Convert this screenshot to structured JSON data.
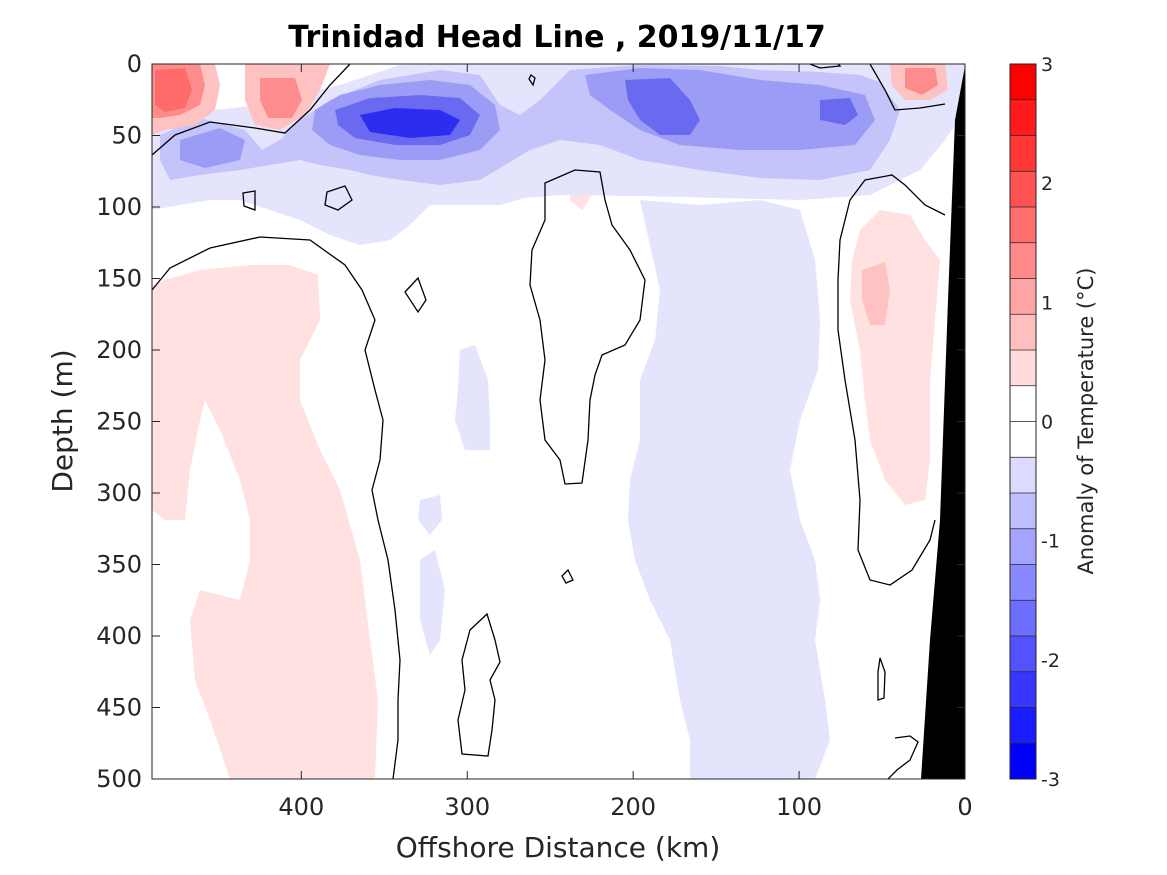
{
  "chart_data": {
    "type": "heatmap",
    "title": "Trinidad Head Line , 2019/11/17",
    "xlabel": "Offshore Distance (km)",
    "ylabel": "Depth (m)",
    "xlim": [
      490,
      0
    ],
    "ylim": [
      0,
      500
    ],
    "x_direction": "reversed",
    "y_direction": "reversed",
    "xticks": [
      400,
      300,
      200,
      100,
      0
    ],
    "yticks": [
      0,
      50,
      100,
      150,
      200,
      250,
      300,
      350,
      400,
      450,
      500
    ],
    "grid": false,
    "colorbar": {
      "label": "Anomaly of Temperature (°C)",
      "range": [
        -3,
        3
      ],
      "ticks": [
        3,
        2,
        1,
        0,
        -1,
        -2,
        -3
      ],
      "levels": [
        "#ff0000",
        "#ff1b1b",
        "#ff3737",
        "#ff5252",
        "#ff6d6d",
        "#ff8989",
        "#ffa4a4",
        "#ffbfbf",
        "#ffdbdb",
        "#ffffff",
        "#ffffff",
        "#dbdbff",
        "#bfbfff",
        "#a4a4ff",
        "#8989ff",
        "#6d6dff",
        "#5252ff",
        "#3737ff",
        "#1b1bff",
        "#0000ff"
      ]
    },
    "colors": {
      "warm_weak": "#ffe1e1",
      "warm_mid": "#ffc2c2",
      "warm_strong": "#ff8c8c",
      "warm_core": "#ff6a6a",
      "cool_weak": "#e4e4fc",
      "cool_mid": "#c4c4fa",
      "cool_strong": "#9c9cf6",
      "cool_deep": "#6a6af0",
      "cool_core": "#2d2df0",
      "contour": "#000000",
      "bathymetry": "#000000"
    },
    "features": [
      {
        "name": "near-surface warm anomaly offshore",
        "x": [
          490,
          440
        ],
        "depth": [
          0,
          40
        ],
        "anomaly": 1.6
      },
      {
        "name": "near-surface warm anomaly mid-offshore",
        "x": [
          430,
          400
        ],
        "depth": [
          0,
          40
        ],
        "anomaly": 0.8
      },
      {
        "name": "near-surface warm anomaly nearshore",
        "x": [
          40,
          15
        ],
        "depth": [
          0,
          25
        ],
        "anomaly": 0.9
      },
      {
        "name": "subsurface cold core",
        "x": [
          370,
          280
        ],
        "depth": [
          25,
          75
        ],
        "anomaly": -2.4
      },
      {
        "name": "cold anomaly band",
        "x": [
          220,
          70
        ],
        "depth": [
          0,
          80
        ],
        "anomaly": -1.5
      },
      {
        "name": "cold anomaly offshore",
        "x": [
          470,
          420
        ],
        "depth": [
          45,
          90
        ],
        "anomaly": -1.0
      },
      {
        "name": "deep warm anomaly offshore",
        "x": [
          490,
          340
        ],
        "depth": [
          140,
          500
        ],
        "anomaly": 0.3
      },
      {
        "name": "deep warm anomaly nearshore",
        "x": [
          75,
          25
        ],
        "depth": [
          100,
          310
        ],
        "anomaly": 0.4
      },
      {
        "name": "deep cold anomaly",
        "x": [
          230,
          90
        ],
        "depth": [
          100,
          500
        ],
        "anomaly": -0.3
      }
    ]
  }
}
